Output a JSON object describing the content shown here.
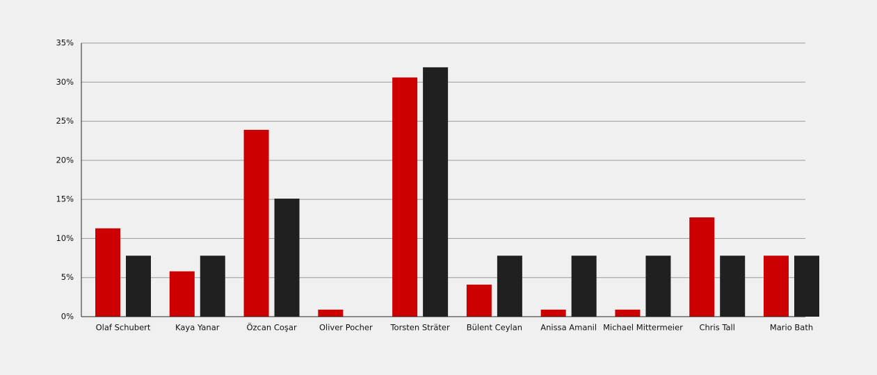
{
  "chart_data": {
    "type": "bar",
    "categories": [
      "Olaf Schubert",
      "Kaya Yanar",
      "Özcan Coşar",
      "Oliver Pocher",
      "Torsten Sträter",
      "Bülent Ceylan",
      "Anissa Amanil",
      "Michael Mittermeier",
      "Chris Tall",
      "Mario Bath"
    ],
    "series": [
      {
        "color": "#cc0000",
        "values": [
          11.3,
          5.8,
          23.9,
          0.9,
          30.6,
          4.1,
          0.9,
          0.9,
          12.7,
          7.8
        ]
      },
      {
        "color": "#202020",
        "values": [
          7.8,
          7.8,
          15.1,
          0,
          31.9,
          7.8,
          7.8,
          7.8,
          7.8,
          7.8
        ]
      }
    ],
    "ylim": [
      0,
      35
    ],
    "yticks": [
      {
        "value": 0,
        "label": "0%"
      },
      {
        "value": 5,
        "label": "5%"
      },
      {
        "value": 10,
        "label": "10%"
      },
      {
        "value": 15,
        "label": "15%"
      },
      {
        "value": 20,
        "label": "20%"
      },
      {
        "value": 25,
        "label": "25%"
      },
      {
        "value": 30,
        "label": "30%"
      },
      {
        "value": 35,
        "label": "35%"
      }
    ],
    "grid": true
  }
}
